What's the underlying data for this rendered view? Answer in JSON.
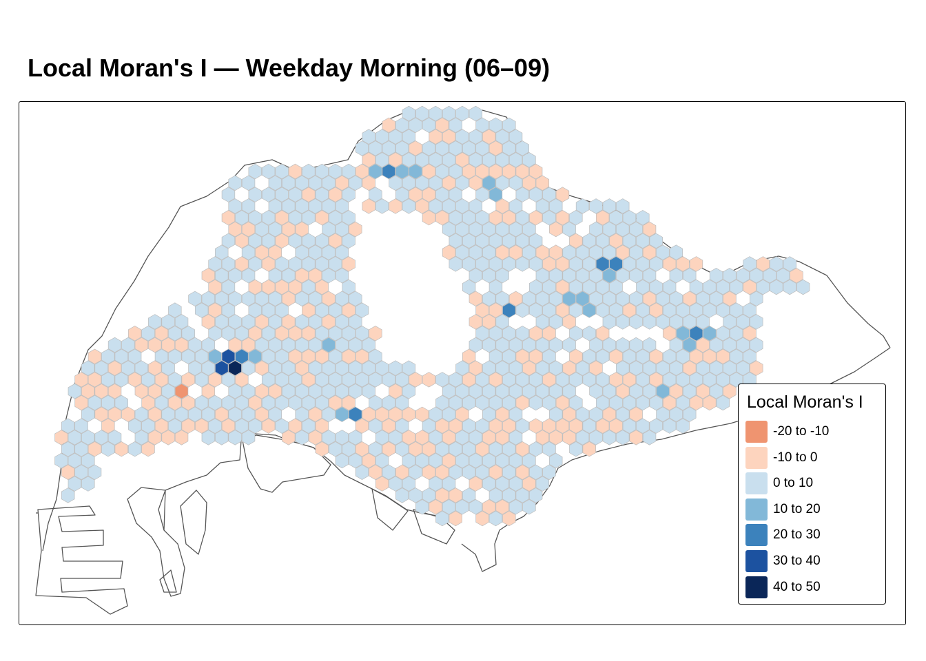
{
  "title": "Local Moran's I — Weekday Morning (06–09)",
  "legend": {
    "title": "Local Moran's I",
    "items": [
      {
        "label": "-20 to -10",
        "color": "#ef9470"
      },
      {
        "label": "-10 to 0",
        "color": "#fdd4be"
      },
      {
        "label": "0 to 10",
        "color": "#c9dfee"
      },
      {
        "label": "10 to 20",
        "color": "#82b8d8"
      },
      {
        "label": "20 to 30",
        "color": "#3c82bc"
      },
      {
        "label": "30 to 40",
        "color": "#1c52a0"
      },
      {
        "label": "40 to 50",
        "color": "#0a2658"
      }
    ]
  },
  "colors": {
    "hex_border": "#bdbdbd",
    "coastline": "#555555"
  }
}
